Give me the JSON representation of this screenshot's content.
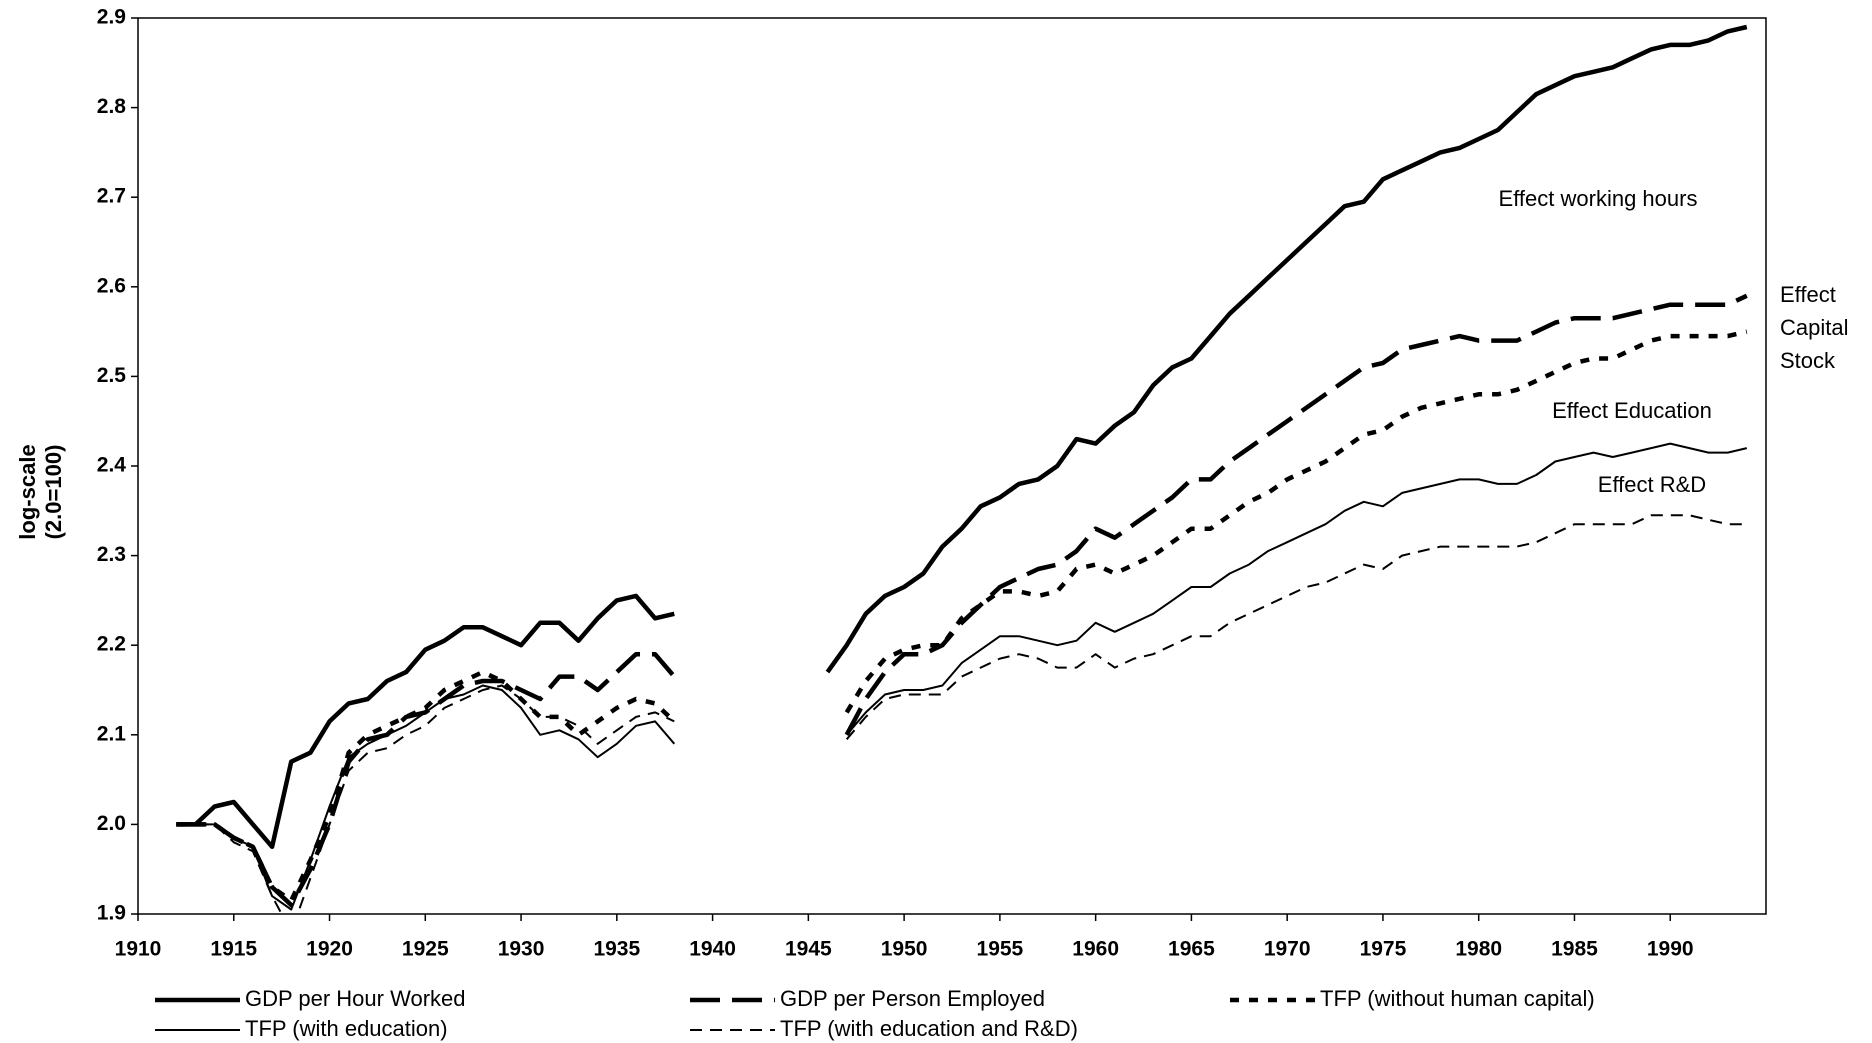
{
  "chart_data": {
    "type": "line",
    "y_label": [
      "log-scale",
      "(2.0=100)"
    ],
    "x": [
      1912,
      1913,
      1914,
      1915,
      1916,
      1917,
      1918,
      1919,
      1920,
      1921,
      1922,
      1923,
      1924,
      1925,
      1926,
      1927,
      1928,
      1929,
      1930,
      1931,
      1932,
      1933,
      1934,
      1935,
      1936,
      1937,
      1938,
      1939,
      1940,
      1941,
      1942,
      1943,
      1944,
      1945,
      1946,
      1947,
      1948,
      1949,
      1950,
      1951,
      1952,
      1953,
      1954,
      1955,
      1956,
      1957,
      1958,
      1959,
      1960,
      1961,
      1962,
      1963,
      1964,
      1965,
      1966,
      1967,
      1968,
      1969,
      1970,
      1971,
      1972,
      1973,
      1974,
      1975,
      1976,
      1977,
      1978,
      1979,
      1980,
      1981,
      1982,
      1983,
      1984,
      1985,
      1986,
      1987,
      1988,
      1989,
      1990,
      1991,
      1992,
      1993,
      1994
    ],
    "series": [
      {
        "name": "GDP per Hour Worked",
        "color": "#000000",
        "style": "thick-solid",
        "values": [
          2.0,
          2.0,
          2.02,
          2.025,
          2.0,
          1.975,
          2.07,
          2.08,
          2.115,
          2.135,
          2.14,
          2.16,
          2.17,
          2.195,
          2.205,
          2.22,
          2.22,
          2.21,
          2.2,
          2.225,
          2.225,
          2.205,
          2.23,
          2.25,
          2.255,
          2.23,
          2.235,
          null,
          null,
          null,
          null,
          null,
          null,
          null,
          2.17,
          2.2,
          2.235,
          2.255,
          2.265,
          2.28,
          2.31,
          2.33,
          2.355,
          2.365,
          2.38,
          2.385,
          2.4,
          2.43,
          2.425,
          2.445,
          2.46,
          2.49,
          2.51,
          2.52,
          2.545,
          2.57,
          2.59,
          2.61,
          2.63,
          2.65,
          2.67,
          2.69,
          2.695,
          2.72,
          2.73,
          2.74,
          2.75,
          2.755,
          2.765,
          2.775,
          2.795,
          2.815,
          2.825,
          2.835,
          2.84,
          2.845,
          2.855,
          2.865,
          2.87,
          2.87,
          2.875,
          2.885,
          2.89
        ]
      },
      {
        "name": "GDP per Person Employed",
        "color": "#000000",
        "style": "thick-long-dash",
        "values": [
          2.0,
          2.0,
          2.0,
          1.985,
          1.975,
          1.93,
          1.91,
          1.95,
          2.0,
          2.07,
          2.095,
          2.1,
          2.12,
          2.125,
          2.14,
          2.155,
          2.16,
          2.16,
          2.15,
          2.14,
          2.165,
          2.165,
          2.15,
          2.17,
          2.19,
          2.19,
          2.165,
          null,
          null,
          null,
          null,
          null,
          null,
          null,
          null,
          2.1,
          2.14,
          2.17,
          2.19,
          2.19,
          2.2,
          2.225,
          2.245,
          2.265,
          2.275,
          2.285,
          2.29,
          2.305,
          2.33,
          2.32,
          2.335,
          2.35,
          2.365,
          2.385,
          2.385,
          2.405,
          2.42,
          2.435,
          2.45,
          2.465,
          2.48,
          2.495,
          2.51,
          2.515,
          2.53,
          2.535,
          2.54,
          2.545,
          2.54,
          2.54,
          2.54,
          2.55,
          2.56,
          2.565,
          2.565,
          2.565,
          2.57,
          2.575,
          2.58,
          2.58,
          2.58,
          2.58,
          2.59
        ]
      },
      {
        "name": "TFP (without human capital)",
        "color": "#000000",
        "style": "thick-short-dash",
        "values": [
          2.0,
          2.0,
          2.0,
          1.985,
          1.975,
          1.93,
          1.915,
          1.96,
          2.01,
          2.08,
          2.1,
          2.11,
          2.12,
          2.13,
          2.15,
          2.16,
          2.17,
          2.16,
          2.14,
          2.12,
          2.12,
          2.1,
          2.115,
          2.13,
          2.14,
          2.135,
          2.115,
          null,
          null,
          null,
          null,
          null,
          null,
          null,
          null,
          2.125,
          2.16,
          2.185,
          2.195,
          2.2,
          2.2,
          2.23,
          2.245,
          2.26,
          2.26,
          2.255,
          2.26,
          2.285,
          2.29,
          2.28,
          2.29,
          2.3,
          2.315,
          2.33,
          2.33,
          2.345,
          2.36,
          2.37,
          2.385,
          2.395,
          2.405,
          2.42,
          2.435,
          2.44,
          2.455,
          2.465,
          2.47,
          2.475,
          2.48,
          2.48,
          2.485,
          2.495,
          2.505,
          2.515,
          2.52,
          2.52,
          2.53,
          2.54,
          2.545,
          2.545,
          2.545,
          2.545,
          2.55
        ]
      },
      {
        "name": "TFP (with education)",
        "color": "#000000",
        "style": "thin-solid",
        "values": [
          2.0,
          2.0,
          2.0,
          1.985,
          1.975,
          1.92,
          1.905,
          1.96,
          2.02,
          2.075,
          2.09,
          2.1,
          2.11,
          2.125,
          2.14,
          2.145,
          2.155,
          2.15,
          2.13,
          2.1,
          2.105,
          2.095,
          2.075,
          2.09,
          2.11,
          2.115,
          2.09,
          null,
          null,
          null,
          null,
          null,
          null,
          null,
          null,
          2.1,
          2.125,
          2.145,
          2.15,
          2.15,
          2.155,
          2.18,
          2.195,
          2.21,
          2.21,
          2.205,
          2.2,
          2.205,
          2.225,
          2.215,
          2.225,
          2.235,
          2.25,
          2.265,
          2.265,
          2.28,
          2.29,
          2.305,
          2.315,
          2.325,
          2.335,
          2.35,
          2.36,
          2.355,
          2.37,
          2.375,
          2.38,
          2.385,
          2.385,
          2.38,
          2.38,
          2.39,
          2.405,
          2.41,
          2.415,
          2.41,
          2.415,
          2.42,
          2.425,
          2.42,
          2.415,
          2.415,
          2.42
        ]
      },
      {
        "name": "TFP (with education and R&D)",
        "color": "#000000",
        "style": "thin-dash",
        "values": [
          2.0,
          2.0,
          2.0,
          1.98,
          1.97,
          1.92,
          1.88,
          1.94,
          2.0,
          2.06,
          2.08,
          2.085,
          2.1,
          2.11,
          2.13,
          2.14,
          2.15,
          2.155,
          2.14,
          2.12,
          2.12,
          2.11,
          2.09,
          2.105,
          2.12,
          2.125,
          2.115,
          null,
          null,
          null,
          null,
          null,
          null,
          null,
          null,
          2.095,
          2.12,
          2.14,
          2.145,
          2.145,
          2.145,
          2.165,
          2.175,
          2.185,
          2.19,
          2.185,
          2.175,
          2.175,
          2.19,
          2.175,
          2.185,
          2.19,
          2.2,
          2.21,
          2.21,
          2.225,
          2.235,
          2.245,
          2.255,
          2.265,
          2.27,
          2.28,
          2.29,
          2.285,
          2.3,
          2.305,
          2.31,
          2.31,
          2.31,
          2.31,
          2.31,
          2.315,
          2.325,
          2.335,
          2.335,
          2.335,
          2.335,
          2.345,
          2.345,
          2.345,
          2.34,
          2.335,
          2.335
        ]
      }
    ],
    "annotations": [
      [
        "Effect working hours"
      ],
      [
        "Effect",
        "Capital",
        "Stock"
      ],
      [
        "Effect Education"
      ],
      [
        "Effect R&D"
      ]
    ],
    "xlim": [
      1910,
      1995
    ],
    "ylim": [
      1.9,
      2.9
    ],
    "xticks": [
      1910,
      1915,
      1920,
      1925,
      1930,
      1935,
      1940,
      1945,
      1950,
      1955,
      1960,
      1965,
      1970,
      1975,
      1980,
      1985,
      1990
    ],
    "yticks": [
      1.9,
      {
        "value": 2,
        "label": "2.0"
      },
      2.1,
      2.2,
      2.3,
      2.4,
      2.5,
      2.6,
      2.7,
      2.8,
      2.9
    ],
    "grid": false,
    "legend": "bottom"
  }
}
